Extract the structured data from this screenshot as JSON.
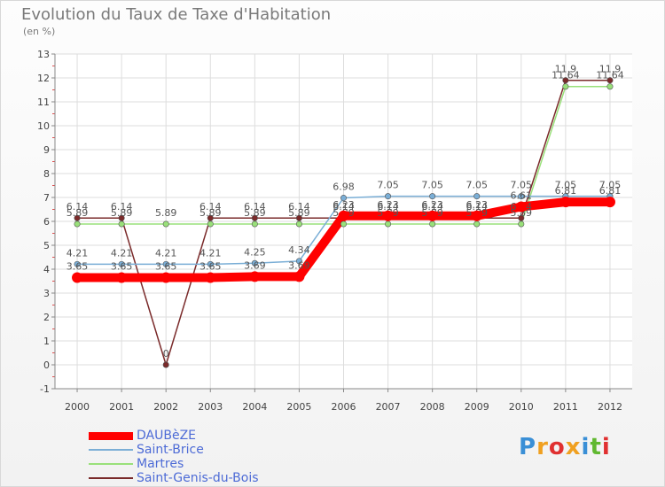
{
  "header": {
    "title": "Evolution du Taux de Taxe d'Habitation",
    "unit": "(en %)"
  },
  "chart_data": {
    "type": "line",
    "title": "Evolution du Taux de Taxe d'Habitation",
    "ylabel": "(en %)",
    "xlabel": "",
    "ylim": [
      -1,
      13
    ],
    "yticks": [
      "-1",
      "0",
      "1",
      "2",
      "3",
      "4",
      "5",
      "6",
      "7",
      "8",
      "9",
      "10",
      "11",
      "12",
      "13"
    ],
    "categories": [
      "2000",
      "2001",
      "2002",
      "2003",
      "2004",
      "2005",
      "2006",
      "2007",
      "2008",
      "2009",
      "2010",
      "2011",
      "2012"
    ],
    "grid": true,
    "legend_position": "bottom-left",
    "series": [
      {
        "name": "DAUBèZE",
        "color": "#ff0000",
        "values": [
          3.65,
          3.65,
          3.65,
          3.65,
          3.69,
          3.69,
          6.23,
          6.23,
          6.23,
          6.23,
          6.61,
          6.81,
          6.81
        ],
        "labels": [
          "3.65",
          "3.65",
          "3.65",
          "3.65",
          "3.69",
          "3.69",
          "6.23",
          "6.23",
          "6.23",
          "6.23",
          "6.61",
          "6.81",
          "6.81"
        ]
      },
      {
        "name": "Saint-Brice",
        "color": "#7aaed6",
        "values": [
          4.21,
          4.21,
          4.21,
          4.21,
          4.25,
          4.34,
          6.98,
          7.05,
          7.05,
          7.05,
          7.05,
          7.05,
          7.05
        ],
        "labels": [
          "4.21",
          "4.21",
          "4.21",
          "4.21",
          "4.25",
          "4.34",
          "6.98",
          "7.05",
          "7.05",
          "7.05",
          "7.05",
          "7.05",
          "7.05"
        ]
      },
      {
        "name": "Martres",
        "color": "#99e07a",
        "values": [
          5.89,
          5.89,
          5.89,
          5.89,
          5.89,
          5.89,
          5.89,
          5.89,
          5.89,
          5.89,
          5.89,
          11.64,
          11.64
        ],
        "labels": [
          "5.89",
          "5.89",
          "5.89",
          "5.89",
          "5.89",
          "5.89",
          "5.89",
          "5.89",
          "5.89",
          "5.89",
          "5.89",
          "11.64",
          "11.64"
        ]
      },
      {
        "name": "Saint-Genis-du-Bois",
        "color": "#7a2a2a",
        "values": [
          6.14,
          6.14,
          0,
          6.14,
          6.14,
          6.14,
          6.14,
          6.14,
          6.14,
          6.14,
          6.14,
          11.9,
          11.9
        ],
        "labels": [
          "6.14",
          "6.14",
          "0",
          "6.14",
          "6.14",
          "6.14",
          "6.14",
          "6.14",
          "6.14",
          "6.14",
          "6.14",
          "11.9",
          "11.9"
        ]
      }
    ]
  },
  "brand": {
    "letters": [
      "P",
      "r",
      "o",
      "x",
      "i",
      "t",
      "i"
    ],
    "colors": [
      "#3a8fd6",
      "#f0a020",
      "#e03030",
      "#f0a020",
      "#3a8fd6",
      "#60b830",
      "#e03030"
    ]
  }
}
